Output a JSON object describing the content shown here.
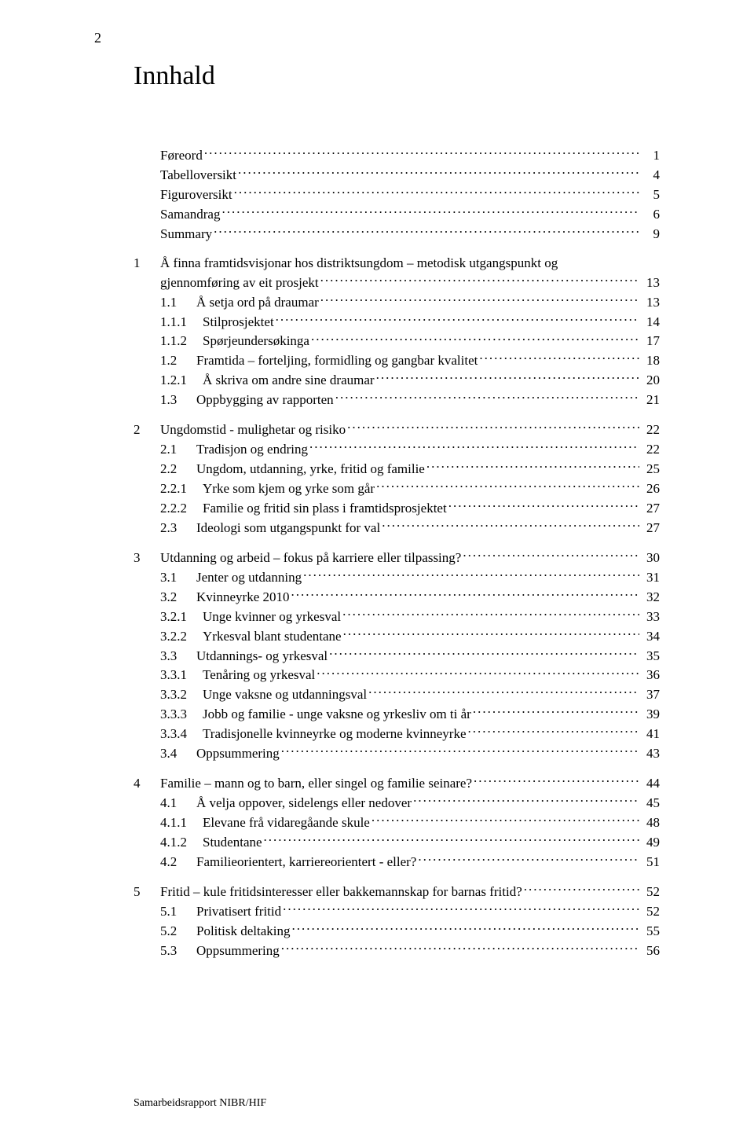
{
  "page_number": "2",
  "title": "Innhald",
  "footer": "Samarbeidsrapport NIBR/HIF",
  "toc": [
    {
      "level": 0,
      "num": "",
      "label": "Føreord",
      "page": "1",
      "group_start": false
    },
    {
      "level": 0,
      "num": "",
      "label": "Tabelloversikt",
      "page": "4",
      "group_start": false
    },
    {
      "level": 0,
      "num": "",
      "label": "Figuroversikt",
      "page": "5",
      "group_start": false
    },
    {
      "level": 0,
      "num": "",
      "label": "Samandrag",
      "page": "6",
      "group_start": false
    },
    {
      "level": 0,
      "num": "",
      "label": "Summary",
      "page": "9",
      "group_start": false
    },
    {
      "level": 0,
      "num": "1",
      "label": "Å finna framtidsvisjonar hos distriktsungdom – metodisk utgangspunkt og",
      "page": "",
      "group_start": true,
      "no_dots": true
    },
    {
      "level": 0,
      "num": "",
      "label": "gjennomføring av eit prosjekt",
      "page": "13",
      "group_start": false,
      "continuation": true
    },
    {
      "level": 1,
      "num": "1.1",
      "label": "Å setja ord på draumar",
      "page": "13",
      "group_start": false
    },
    {
      "level": 2,
      "num": "1.1.1",
      "label": "Stilprosjektet",
      "page": "14",
      "group_start": false
    },
    {
      "level": 2,
      "num": "1.1.2",
      "label": "Spørjeundersøkinga",
      "page": "17",
      "group_start": false
    },
    {
      "level": 1,
      "num": "1.2",
      "label": "Framtida – forteljing, formidling og gangbar kvalitet",
      "page": "18",
      "group_start": false
    },
    {
      "level": 2,
      "num": "1.2.1",
      "label": "Å skriva om andre sine draumar",
      "page": "20",
      "group_start": false
    },
    {
      "level": 1,
      "num": "1.3",
      "label": "Oppbygging av rapporten",
      "page": "21",
      "group_start": false
    },
    {
      "level": 0,
      "num": "2",
      "label": "Ungdomstid - mulighetar og risiko",
      "page": "22",
      "group_start": true
    },
    {
      "level": 1,
      "num": "2.1",
      "label": "Tradisjon og endring",
      "page": "22",
      "group_start": false
    },
    {
      "level": 1,
      "num": "2.2",
      "label": "Ungdom, utdanning, yrke, fritid og familie",
      "page": "25",
      "group_start": false
    },
    {
      "level": 2,
      "num": "2.2.1",
      "label": "Yrke som kjem og yrke som går",
      "page": "26",
      "group_start": false
    },
    {
      "level": 2,
      "num": "2.2.2",
      "label": "Familie og fritid sin plass i framtidsprosjektet",
      "page": "27",
      "group_start": false
    },
    {
      "level": 1,
      "num": "2.3",
      "label": "Ideologi som utgangspunkt for val",
      "page": "27",
      "group_start": false
    },
    {
      "level": 0,
      "num": "3",
      "label": "Utdanning og arbeid – fokus på karriere eller tilpassing?",
      "page": "30",
      "group_start": true
    },
    {
      "level": 1,
      "num": "3.1",
      "label": "Jenter og utdanning",
      "page": "31",
      "group_start": false
    },
    {
      "level": 1,
      "num": "3.2",
      "label": "Kvinneyrke 2010",
      "page": "32",
      "group_start": false
    },
    {
      "level": 2,
      "num": "3.2.1",
      "label": "Unge kvinner og yrkesval",
      "page": "33",
      "group_start": false
    },
    {
      "level": 2,
      "num": "3.2.2",
      "label": "Yrkesval blant studentane",
      "page": "34",
      "group_start": false
    },
    {
      "level": 1,
      "num": "3.3",
      "label": "Utdannings- og yrkesval",
      "page": "35",
      "group_start": false
    },
    {
      "level": 2,
      "num": "3.3.1",
      "label": "Tenåring og yrkesval",
      "page": "36",
      "group_start": false
    },
    {
      "level": 2,
      "num": "3.3.2",
      "label": "Unge vaksne og utdanningsval",
      "page": "37",
      "group_start": false
    },
    {
      "level": 2,
      "num": "3.3.3",
      "label": "Jobb og familie - unge vaksne og yrkesliv om ti år",
      "page": "39",
      "group_start": false
    },
    {
      "level": 2,
      "num": "3.3.4",
      "label": "Tradisjonelle kvinneyrke og moderne kvinneyrke",
      "page": "41",
      "group_start": false
    },
    {
      "level": 1,
      "num": "3.4",
      "label": "Oppsummering",
      "page": "43",
      "group_start": false
    },
    {
      "level": 0,
      "num": "4",
      "label": "Familie – mann og to barn, eller singel og familie seinare?",
      "page": "44",
      "group_start": true
    },
    {
      "level": 1,
      "num": "4.1",
      "label": "Å velja oppover, sidelengs eller nedover",
      "page": "45",
      "group_start": false
    },
    {
      "level": 2,
      "num": "4.1.1",
      "label": "Elevane frå vidaregåande skule",
      "page": "48",
      "group_start": false
    },
    {
      "level": 2,
      "num": "4.1.2",
      "label": "Studentane",
      "page": "49",
      "group_start": false
    },
    {
      "level": 1,
      "num": "4.2",
      "label": "Familieorientert, karriereorientert - eller?",
      "page": "51",
      "group_start": false
    },
    {
      "level": 0,
      "num": "5",
      "label": "Fritid – kule fritidsinteresser eller bakkemannskap for barnas fritid?",
      "page": "52",
      "group_start": true
    },
    {
      "level": 1,
      "num": "5.1",
      "label": "Privatisert fritid",
      "page": "52",
      "group_start": false
    },
    {
      "level": 1,
      "num": "5.2",
      "label": "Politisk deltaking",
      "page": "55",
      "group_start": false
    },
    {
      "level": 1,
      "num": "5.3",
      "label": "Oppsummering",
      "page": "56",
      "group_start": false
    }
  ]
}
